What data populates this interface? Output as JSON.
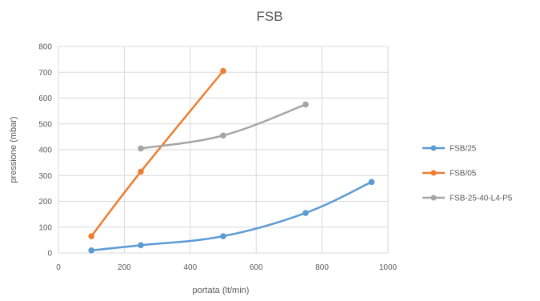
{
  "chart_data": {
    "type": "scatter",
    "title": "FSB",
    "xlabel": "portata (lt/min)",
    "ylabel": "pressione (mbar)",
    "xlim": [
      0,
      1000
    ],
    "ylim": [
      0,
      800
    ],
    "xticks": [
      0,
      200,
      400,
      600,
      800,
      1000
    ],
    "yticks": [
      0,
      100,
      200,
      300,
      400,
      500,
      600,
      700,
      800
    ],
    "grid": true,
    "legend_position": "right",
    "series": [
      {
        "name": "FSB/25",
        "color": "#5b9bd5",
        "points": [
          [
            100,
            10
          ],
          [
            250,
            30
          ],
          [
            500,
            65
          ],
          [
            750,
            155
          ],
          [
            950,
            275
          ]
        ]
      },
      {
        "name": "FSB/05",
        "color": "#ed7d31",
        "points": [
          [
            100,
            65
          ],
          [
            250,
            315
          ],
          [
            500,
            705
          ]
        ]
      },
      {
        "name": "FSB-25-40-L4-P5",
        "color": "#a5a5a5",
        "points": [
          [
            250,
            405
          ],
          [
            500,
            455
          ],
          [
            750,
            575
          ]
        ]
      }
    ]
  }
}
